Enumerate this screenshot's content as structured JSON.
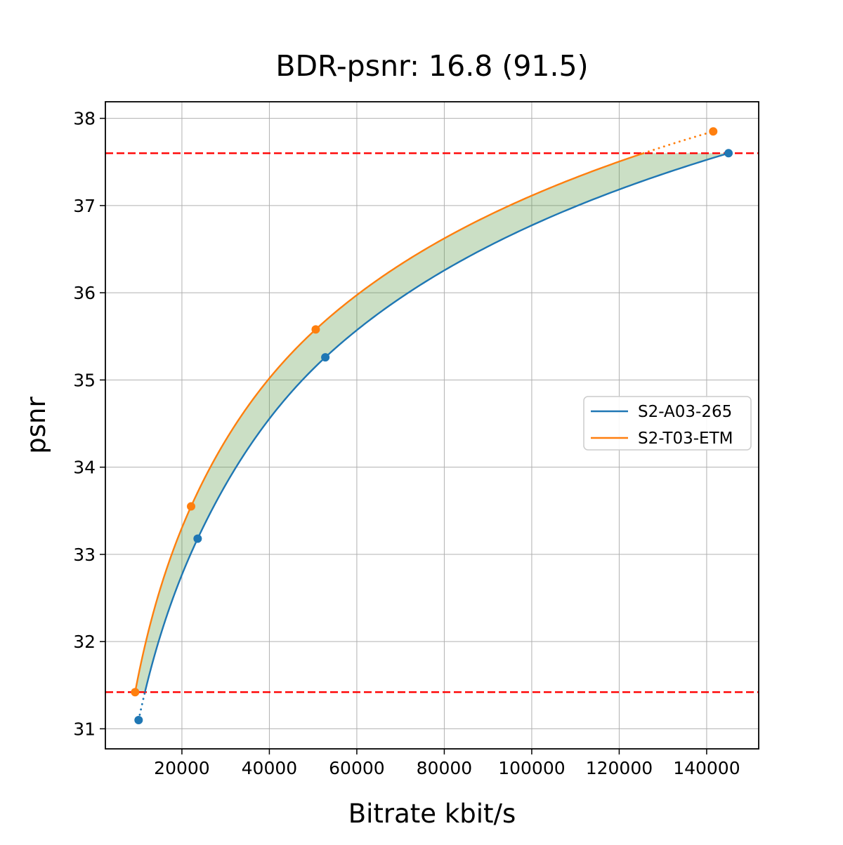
{
  "figure": {
    "title": "BDR-psnr: 16.8 (91.5)",
    "xlabel": "Bitrate kbit/s",
    "ylabel": "psnr"
  },
  "chart_data": {
    "type": "line",
    "title": "BDR-psnr: 16.8 (91.5)",
    "xlabel": "Bitrate kbit/s",
    "ylabel": "psnr",
    "xlim": [
      2500,
      151900
    ],
    "ylim": [
      30.77,
      38.19
    ],
    "xticks": [
      20000,
      40000,
      60000,
      80000,
      100000,
      120000,
      140000
    ],
    "yticks": [
      31,
      32,
      33,
      34,
      35,
      36,
      37,
      38
    ],
    "grid": true,
    "grid_color": "#b0b0b0",
    "interpolation": "pchip-log-bitrate",
    "series": [
      {
        "name": "S2-A03-265",
        "color": "#1f77b4",
        "marker": "circle",
        "x": [
          10100,
          23600,
          52800,
          145000
        ],
        "y": [
          31.1,
          33.18,
          35.26,
          37.6
        ]
      },
      {
        "name": "S2-T03-ETM",
        "color": "#ff7f0e",
        "marker": "circle",
        "x": [
          9300,
          22100,
          50600,
          141500
        ],
        "y": [
          31.42,
          33.55,
          35.58,
          37.85
        ]
      }
    ],
    "hlines": {
      "values": [
        31.42,
        37.6
      ],
      "color": "#ff0000",
      "style": "dashed",
      "note": "red dashed lines mark the overlapping psnr interval used for BD-rate"
    },
    "fill_between": {
      "color": "#5c9a4a",
      "opacity": 0.32,
      "psnr_range": [
        31.42,
        37.6
      ],
      "note": "green shaded area between the two curves inside the overlap interval"
    },
    "dotted_segments": "curve portions outside the overlap interval are drawn dotted",
    "legend": {
      "position": "center right",
      "entries": [
        "S2-A03-265",
        "S2-T03-ETM"
      ]
    }
  }
}
